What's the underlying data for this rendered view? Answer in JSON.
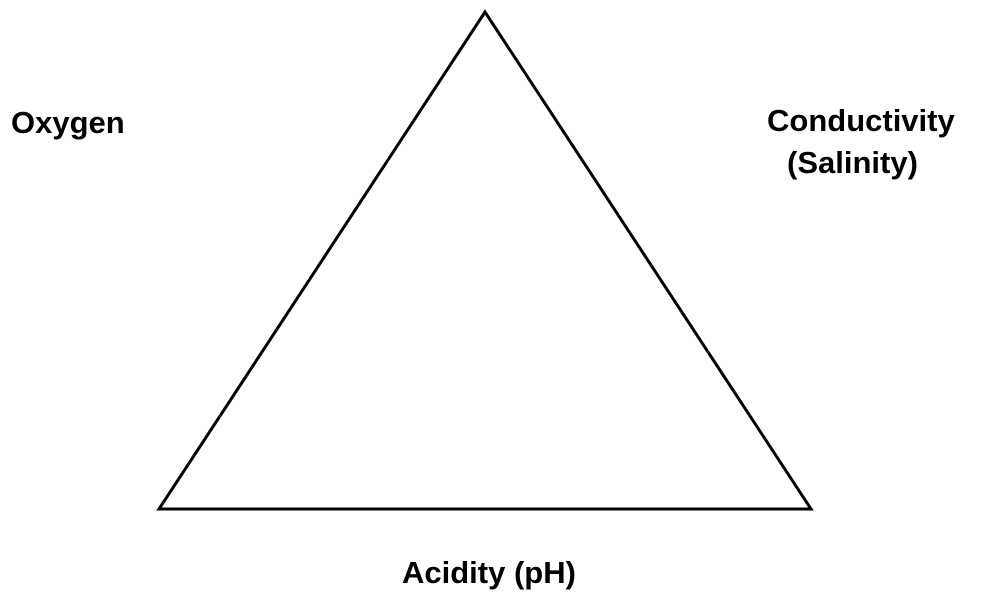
{
  "labels": {
    "left": "Oxygen",
    "right_line1": "Conductivity",
    "right_line2": "(Salinity)",
    "bottom": "Acidity (pH)"
  }
}
